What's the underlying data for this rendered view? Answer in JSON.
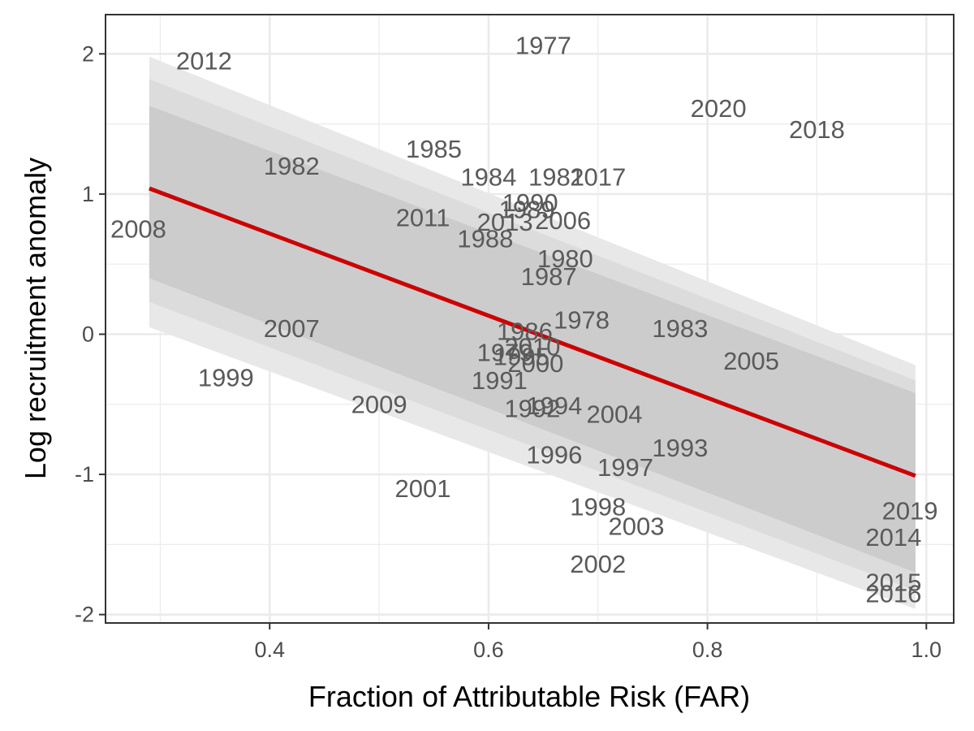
{
  "chart_data": {
    "type": "scatter",
    "xlabel": "Fraction of Attributable Risk (FAR)",
    "ylabel": "Log recruitment anomaly",
    "xlim": [
      0.25,
      1.025
    ],
    "ylim": [
      -2.06,
      2.28
    ],
    "x_ticks": [
      0.4,
      0.6,
      0.8,
      1.0
    ],
    "x_tick_labels": [
      "0.4",
      "0.6",
      "0.8",
      "1.0"
    ],
    "y_ticks": [
      -2,
      -1,
      0,
      1,
      2
    ],
    "y_tick_labels": [
      "-2",
      "-1",
      "0",
      "1",
      "2"
    ],
    "grid": true,
    "points": [
      {
        "label": "2012",
        "x": 0.34,
        "y": 1.95
      },
      {
        "label": "1977",
        "x": 0.65,
        "y": 2.06
      },
      {
        "label": "2020",
        "x": 0.81,
        "y": 1.61
      },
      {
        "label": "2018",
        "x": 0.9,
        "y": 1.46
      },
      {
        "label": "1985",
        "x": 0.55,
        "y": 1.32
      },
      {
        "label": "1982",
        "x": 0.42,
        "y": 1.2
      },
      {
        "label": "1984",
        "x": 0.6,
        "y": 1.12
      },
      {
        "label": "1981",
        "x": 0.662,
        "y": 1.12
      },
      {
        "label": "2017",
        "x": 0.7,
        "y": 1.12
      },
      {
        "label": "1990",
        "x": 0.638,
        "y": 0.94
      },
      {
        "label": "1989",
        "x": 0.635,
        "y": 0.89
      },
      {
        "label": "2011",
        "x": 0.54,
        "y": 0.83
      },
      {
        "label": "2013",
        "x": 0.615,
        "y": 0.8
      },
      {
        "label": "2006",
        "x": 0.668,
        "y": 0.81
      },
      {
        "label": "2008",
        "x": 0.28,
        "y": 0.75
      },
      {
        "label": "1988",
        "x": 0.597,
        "y": 0.68
      },
      {
        "label": "1980",
        "x": 0.67,
        "y": 0.54
      },
      {
        "label": "1987",
        "x": 0.655,
        "y": 0.41
      },
      {
        "label": "1978",
        "x": 0.685,
        "y": 0.1
      },
      {
        "label": "1983",
        "x": 0.775,
        "y": 0.04
      },
      {
        "label": "2007",
        "x": 0.42,
        "y": 0.04
      },
      {
        "label": "1986",
        "x": 0.633,
        "y": 0.02
      },
      {
        "label": "2010",
        "x": 0.64,
        "y": -0.09
      },
      {
        "label": "1979",
        "x": 0.615,
        "y": -0.13
      },
      {
        "label": "1995",
        "x": 0.63,
        "y": -0.16
      },
      {
        "label": "2000",
        "x": 0.643,
        "y": -0.21
      },
      {
        "label": "2005",
        "x": 0.84,
        "y": -0.19
      },
      {
        "label": "1999",
        "x": 0.36,
        "y": -0.31
      },
      {
        "label": "1991",
        "x": 0.61,
        "y": -0.33
      },
      {
        "label": "2009",
        "x": 0.5,
        "y": -0.5
      },
      {
        "label": "1994",
        "x": 0.66,
        "y": -0.51
      },
      {
        "label": "1992",
        "x": 0.64,
        "y": -0.53
      },
      {
        "label": "2004",
        "x": 0.715,
        "y": -0.57
      },
      {
        "label": "1996",
        "x": 0.66,
        "y": -0.86
      },
      {
        "label": "1993",
        "x": 0.775,
        "y": -0.81
      },
      {
        "label": "1997",
        "x": 0.725,
        "y": -0.95
      },
      {
        "label": "2001",
        "x": 0.54,
        "y": -1.1
      },
      {
        "label": "1998",
        "x": 0.7,
        "y": -1.23
      },
      {
        "label": "2003",
        "x": 0.735,
        "y": -1.37
      },
      {
        "label": "2002",
        "x": 0.7,
        "y": -1.64
      },
      {
        "label": "2019",
        "x": 0.985,
        "y": -1.26
      },
      {
        "label": "2014",
        "x": 0.97,
        "y": -1.45
      },
      {
        "label": "2015",
        "x": 0.97,
        "y": -1.77
      },
      {
        "label": "2016",
        "x": 0.97,
        "y": -1.85
      }
    ],
    "trend_line": {
      "color": "#cc0000",
      "x": [
        0.29,
        0.99
      ],
      "y": [
        1.04,
        -1.01
      ]
    },
    "ribbons": {
      "x": [
        0.29,
        0.99
      ],
      "outer": {
        "lower": [
          0.05,
          -1.96
        ],
        "upper": [
          1.98,
          -0.22
        ]
      },
      "middle": {
        "lower": [
          0.23,
          -1.83
        ],
        "upper": [
          1.82,
          -0.33
        ]
      },
      "inner": {
        "lower": [
          0.4,
          -1.7
        ],
        "upper": [
          1.63,
          -0.42
        ]
      }
    },
    "colors": {
      "ribbon_outer": "#e8e8e8",
      "ribbon_middle": "#dcdcdc",
      "ribbon_inner": "#cccccc",
      "label_text": "#5a5a5a",
      "grid": "#ebebeb",
      "panel_border": "#333333"
    }
  }
}
